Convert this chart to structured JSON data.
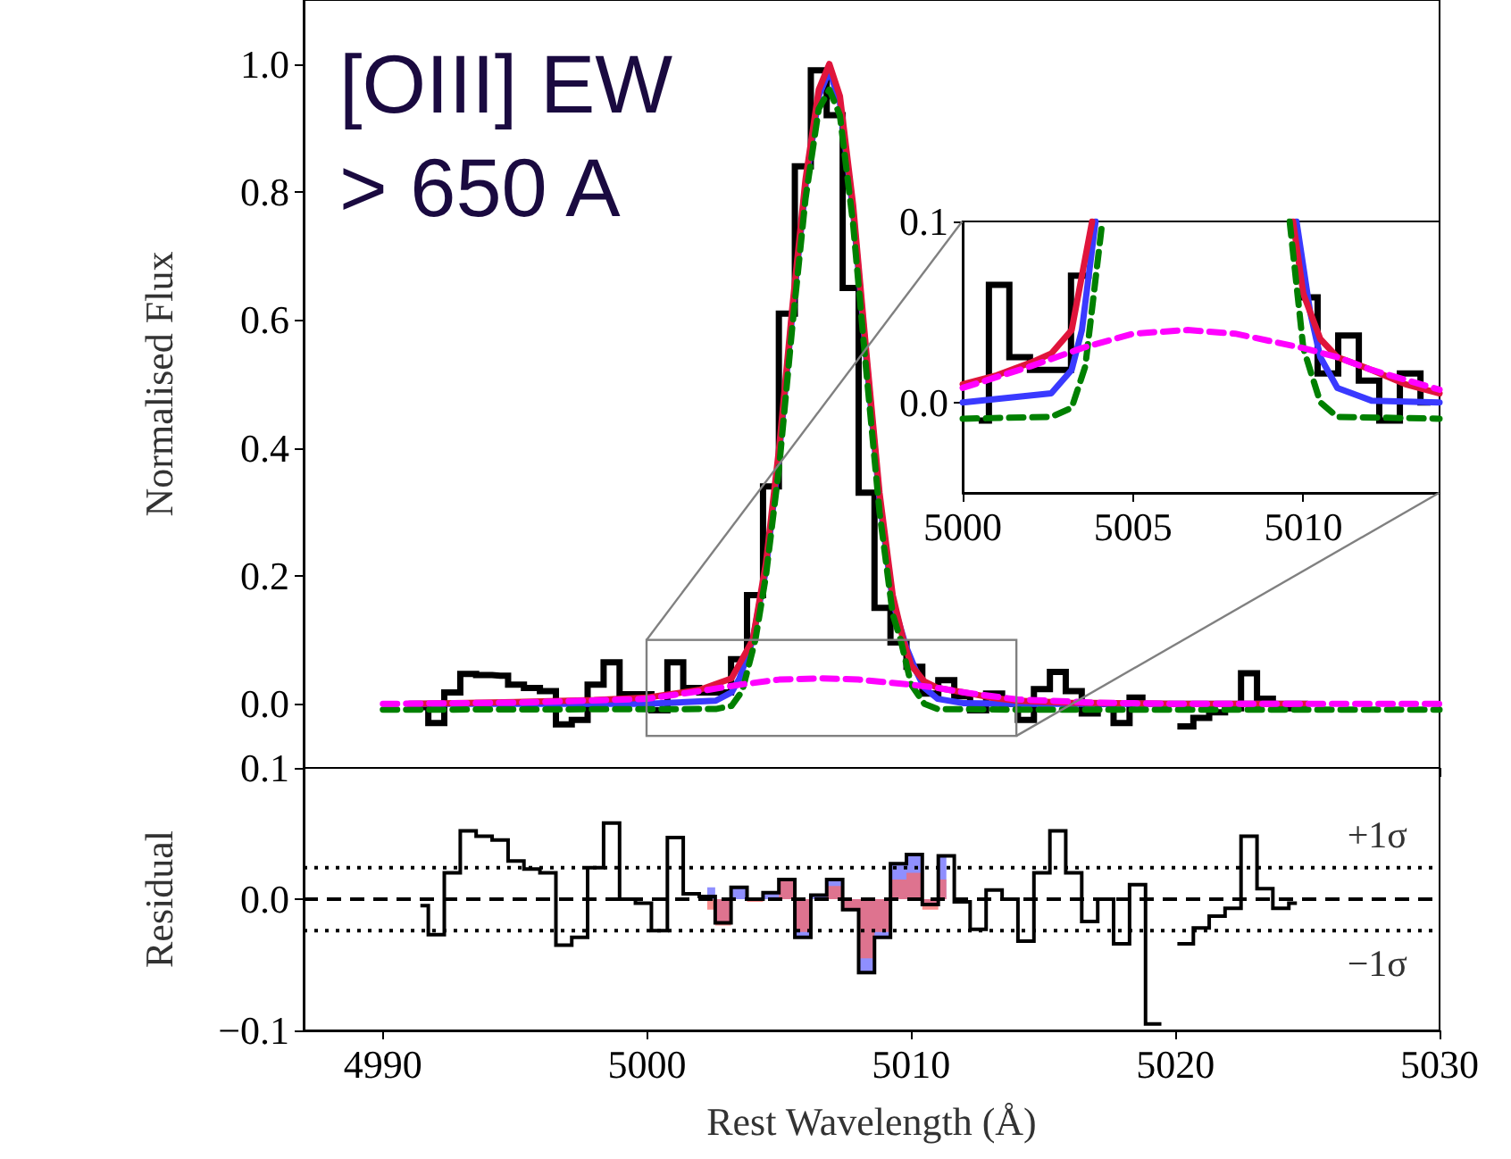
{
  "chart_data": [
    {
      "type": "line",
      "ylabel": "Normalised Flux",
      "annotations": [
        "[OIII] EW\n> 650 A"
      ],
      "xlim": [
        4987,
        5030
      ],
      "ylim": [
        -0.1,
        1.1
      ],
      "yticks": [
        {
          "value": 0,
          "label": "0.0"
        },
        {
          "value": 0.2,
          "label": "0.2"
        },
        {
          "value": 0.4,
          "label": "0.4"
        },
        {
          "value": 0.6,
          "label": "0.6"
        },
        {
          "value": 0.8,
          "label": "0.8"
        },
        {
          "value": 1,
          "label": "1.0"
        }
      ],
      "xticks": [
        4990,
        5000,
        5010,
        5020,
        5030
      ],
      "tick_labels": "y",
      "marker": "none",
      "series": [
        {
          "type": "step",
          "color": "#000000",
          "x": [
            4991.42,
            4992.02,
            4992.63,
            4993.23,
            4993.83,
            4994.44,
            4995.04,
            4995.64,
            4996.25,
            4996.85,
            4997.45,
            4998.05,
            4998.66,
            4999.26,
            4999.86,
            5000.47,
            5001.07,
            5001.67,
            5002.28,
            5002.88,
            5003.48,
            5004.09,
            5004.69,
            5005.29,
            5005.9,
            5006.5,
            5007.1,
            5007.71,
            5008.31,
            5008.91,
            5009.52,
            5010.12,
            5010.72,
            5011.33,
            5011.93,
            5012.53,
            5013.14,
            5013.74,
            5014.34,
            5014.95,
            5015.55,
            5016.15,
            5016.76,
            5017.36,
            5017.96,
            5018.57,
            5019.17,
            5019.77,
            5020.38,
            5020.98,
            5021.58,
            5022.18,
            5022.79,
            5023.39,
            5023.99,
            5024.6
          ],
          "values": [
            -0.005,
            -0.03,
            0.018,
            0.047,
            0.045,
            0.044,
            0.03,
            0.025,
            0.02,
            -0.032,
            -0.025,
            0.03,
            0.065,
            0.015,
            0.015,
            -0.01,
            0.065,
            0.025,
            0.018,
            0.018,
            0.07,
            0.17,
            0.34,
            0.61,
            0.84,
            0.99,
            0.92,
            0.65,
            0.33,
            0.15,
            0.096,
            0.058,
            0.016,
            0.037,
            0.012,
            -0.01,
            0.016,
            0.0,
            -0.025,
            0.023,
            0.05,
            0.02,
            -0.015,
            0.0,
            -0.03,
            0.01,
            null,
            null,
            -0.035,
            -0.022,
            -0.013,
            -0.007,
            0.048,
            0.008,
            -0.007,
            -0.003
          ]
        },
        {
          "color": "#3a3aff",
          "x": [
            4991,
            5000,
            5002.6,
            5003.2,
            5003.5,
            5004,
            5004.5,
            5005,
            5005.5,
            5006,
            5006.5,
            5006.9,
            5007.3,
            5007.8,
            5008.3,
            5008.8,
            5009.3,
            5009.8,
            5010.2,
            5010.5,
            5011,
            5012,
            5014,
            5025
          ],
          "values": [
            0,
            0,
            0.005,
            0.018,
            0.04,
            0.1,
            0.21,
            0.39,
            0.61,
            0.81,
            0.95,
            0.99,
            0.94,
            0.77,
            0.54,
            0.32,
            0.16,
            0.09,
            0.05,
            0.025,
            0.008,
            0.001,
            0,
            0
          ]
        },
        {
          "color": "#e0153c",
          "x": [
            4991,
            4995,
            4998,
            5000,
            5002,
            5003.2,
            5004,
            5004.5,
            5005,
            5005.5,
            5006,
            5006.5,
            5006.9,
            5007.3,
            5007.8,
            5008.3,
            5008.8,
            5009.3,
            5009.7,
            5010,
            5010.5,
            5011,
            5012,
            5013,
            5014,
            5016,
            5020,
            5025
          ],
          "values": [
            0,
            0.003,
            0.006,
            0.01,
            0.022,
            0.04,
            0.1,
            0.22,
            0.4,
            0.62,
            0.82,
            0.96,
            1.0,
            0.95,
            0.78,
            0.55,
            0.33,
            0.17,
            0.1,
            0.06,
            0.035,
            0.025,
            0.018,
            0.01,
            0.005,
            0.002,
            0,
            0
          ]
        },
        {
          "color": "#008000",
          "line_style": "dashed",
          "x": [
            4990,
            5002.6,
            5003.2,
            5003.6,
            5004.1,
            5004.5,
            5005,
            5005.5,
            5006,
            5006.5,
            5006.9,
            5007.3,
            5007.8,
            5008.3,
            5008.8,
            5009.3,
            5009.6,
            5010,
            5010.5,
            5011,
            5014,
            5030
          ],
          "values": [
            -0.009,
            -0.008,
            -0.003,
            0.02,
            0.1,
            0.2,
            0.37,
            0.59,
            0.79,
            0.93,
            0.96,
            0.92,
            0.75,
            0.52,
            0.3,
            0.14,
            0.1,
            0.03,
            0,
            -0.008,
            -0.009,
            -0.009
          ]
        },
        {
          "color": "#ff00ff",
          "line_style": "dashed",
          "x": [
            4990,
            4995,
            5000,
            5002,
            5003.5,
            5005,
            5006.6,
            5008,
            5010,
            5011,
            5012,
            5014,
            5017,
            5020,
            5030
          ],
          "values": [
            0,
            0.002,
            0.008,
            0.02,
            0.03,
            0.038,
            0.04,
            0.038,
            0.03,
            0.025,
            0.018,
            0.007,
            0.002,
            0,
            0
          ]
        }
      ]
    },
    {
      "type": "line",
      "xlim": [
        5000,
        5014
      ],
      "ylim": [
        -0.05,
        0.1
      ],
      "xticks": [
        5000,
        5005,
        5010
      ],
      "yticks": [
        {
          "value": 0,
          "label": "0.0"
        },
        {
          "value": 0.1,
          "label": "0.1"
        }
      ],
      "marker": "none",
      "series": [
        {
          "type": "step",
          "color": "#000000",
          "x": [
            5000.47,
            5001.07,
            5001.67,
            5002.28,
            5002.88,
            5003.48,
            5004.09,
            5004.69,
            5005.29,
            5005.9,
            5006.5,
            5007.1,
            5007.71,
            5008.31,
            5008.91,
            5009.52,
            5010.12,
            5010.72,
            5011.33,
            5011.93,
            5012.53,
            5013.14,
            5013.74
          ],
          "values": [
            -0.01,
            0.065,
            0.025,
            0.018,
            0.018,
            0.07,
            null,
            null,
            null,
            null,
            null,
            null,
            null,
            null,
            null,
            null,
            0.058,
            0.016,
            0.037,
            0.012,
            -0.01,
            0.016,
            0.0
          ]
        },
        {
          "color": "#3a3aff",
          "x": [
            5000,
            5002.6,
            5003.2,
            5003.5,
            5003.9,
            5007,
            5009.8,
            5010.2,
            5010.5,
            5011,
            5012,
            5014
          ],
          "values": [
            0,
            0.005,
            0.018,
            0.04,
            0.1,
            null,
            0.1,
            0.05,
            0.025,
            0.008,
            0.001,
            0
          ]
        },
        {
          "color": "#e0153c",
          "x": [
            5000,
            5001,
            5002,
            5002.6,
            5003.2,
            5003.8,
            5007,
            5009.7,
            5010,
            5010.5,
            5011,
            5012,
            5013,
            5014
          ],
          "values": [
            0.01,
            0.015,
            0.022,
            0.027,
            0.04,
            0.1,
            null,
            0.1,
            0.06,
            0.035,
            0.025,
            0.018,
            0.01,
            0.005
          ]
        },
        {
          "color": "#008000",
          "line_style": "dashed",
          "x": [
            5000,
            5002.6,
            5003.2,
            5003.6,
            5004.1,
            5007,
            5009.6,
            5010,
            5010.5,
            5011,
            5014
          ],
          "values": [
            -0.009,
            -0.008,
            -0.003,
            0.02,
            0.1,
            null,
            0.1,
            0.03,
            0,
            -0.008,
            -0.009
          ]
        },
        {
          "color": "#ff00ff",
          "line_style": "dashed",
          "x": [
            5000,
            5002,
            5003.5,
            5005,
            5006.6,
            5008,
            5010,
            5011,
            5012,
            5014
          ],
          "values": [
            0.008,
            0.02,
            0.03,
            0.038,
            0.04,
            0.038,
            0.03,
            0.025,
            0.018,
            0.007
          ]
        }
      ]
    },
    {
      "type": "step",
      "xlabel": "Rest Wavelength (Å)",
      "ylabel": "Residual",
      "xlim": [
        4987,
        5030
      ],
      "ylim": [
        -0.1,
        0.1
      ],
      "xticks": [
        4990,
        5000,
        5010,
        5020,
        5030
      ],
      "yticks": [
        {
          "value": -0.1,
          "label": "−0.1"
        },
        {
          "value": 0,
          "label": "0.0"
        },
        {
          "value": 0.1,
          "label": "0.1"
        }
      ],
      "ref_lines": [
        {
          "axis": "y",
          "value": 0,
          "line_style": "dashed",
          "color": "#000000"
        },
        {
          "axis": "y",
          "value": 0.024,
          "label": "+1σ",
          "line_style": "dotted",
          "color": "#000000"
        },
        {
          "axis": "y",
          "value": -0.024,
          "label": "−1σ",
          "line_style": "dotted",
          "color": "#000000"
        }
      ],
      "series": [
        {
          "type": "area",
          "color": "#6a6aff",
          "x": [
            5002.28,
            5002.88,
            5003.48,
            5004.09,
            5004.69,
            5005.29,
            5005.9,
            5006.5,
            5007.1,
            5007.71,
            5008.31,
            5008.91,
            5009.52,
            5010.12,
            5010.72,
            5011.33
          ],
          "values": [
            0.009,
            -0.018,
            0.009,
            0.0,
            0.005,
            0.015,
            -0.029,
            0.003,
            0.015,
            -0.008,
            -0.056,
            -0.029,
            0.027,
            0.034,
            -0.004,
            0.033
          ]
        },
        {
          "type": "area",
          "color": "#f86a6a",
          "x": [
            5002.28,
            5002.88,
            5003.48,
            5004.09,
            5004.69,
            5005.29,
            5005.9,
            5006.5,
            5007.1,
            5007.71,
            5008.31,
            5008.91,
            5009.52,
            5010.12,
            5010.72,
            5011.33
          ],
          "values": [
            -0.008,
            -0.02,
            0.0,
            -0.002,
            0.0,
            0.015,
            -0.025,
            0.0,
            0.01,
            -0.008,
            -0.045,
            -0.025,
            0.015,
            0.02,
            -0.008,
            0.015
          ]
        },
        {
          "color": "#000000",
          "x": [
            4991.42,
            4992.02,
            4992.63,
            4993.23,
            4993.83,
            4994.44,
            4995.04,
            4995.64,
            4996.25,
            4996.85,
            4997.45,
            4998.05,
            4998.66,
            4999.26,
            4999.86,
            5000.47,
            5001.07,
            5001.67,
            5002.28,
            5002.88,
            5003.48,
            5004.09,
            5004.69,
            5005.29,
            5005.9,
            5006.5,
            5007.1,
            5007.71,
            5008.31,
            5008.91,
            5009.52,
            5010.12,
            5010.72,
            5011.33,
            5011.93,
            5012.53,
            5013.14,
            5013.74,
            5014.34,
            5014.95,
            5015.55,
            5016.15,
            5016.76,
            5017.36,
            5017.96,
            5018.57,
            5019.17,
            5019.77,
            5020.38,
            5020.98,
            5021.58,
            5022.18,
            5022.79,
            5023.39,
            5023.99,
            5024.6
          ],
          "values": [
            -0.005,
            -0.027,
            0.02,
            0.052,
            0.048,
            0.045,
            0.029,
            0.023,
            0.02,
            -0.035,
            -0.029,
            0.024,
            0.058,
            0.0,
            -0.003,
            -0.024,
            0.047,
            0.004,
            0.002,
            -0.018,
            0.009,
            0.0,
            0.005,
            0.015,
            -0.029,
            0.003,
            0.015,
            -0.008,
            -0.056,
            -0.029,
            0.027,
            0.034,
            -0.004,
            0.033,
            -0.002,
            -0.023,
            0.007,
            0.0,
            -0.032,
            0.02,
            0.052,
            0.02,
            -0.017,
            0.0,
            -0.034,
            0.011,
            -0.095,
            null,
            -0.034,
            -0.022,
            -0.013,
            -0.007,
            0.048,
            0.008,
            -0.007,
            -0.003
          ]
        }
      ]
    }
  ]
}
